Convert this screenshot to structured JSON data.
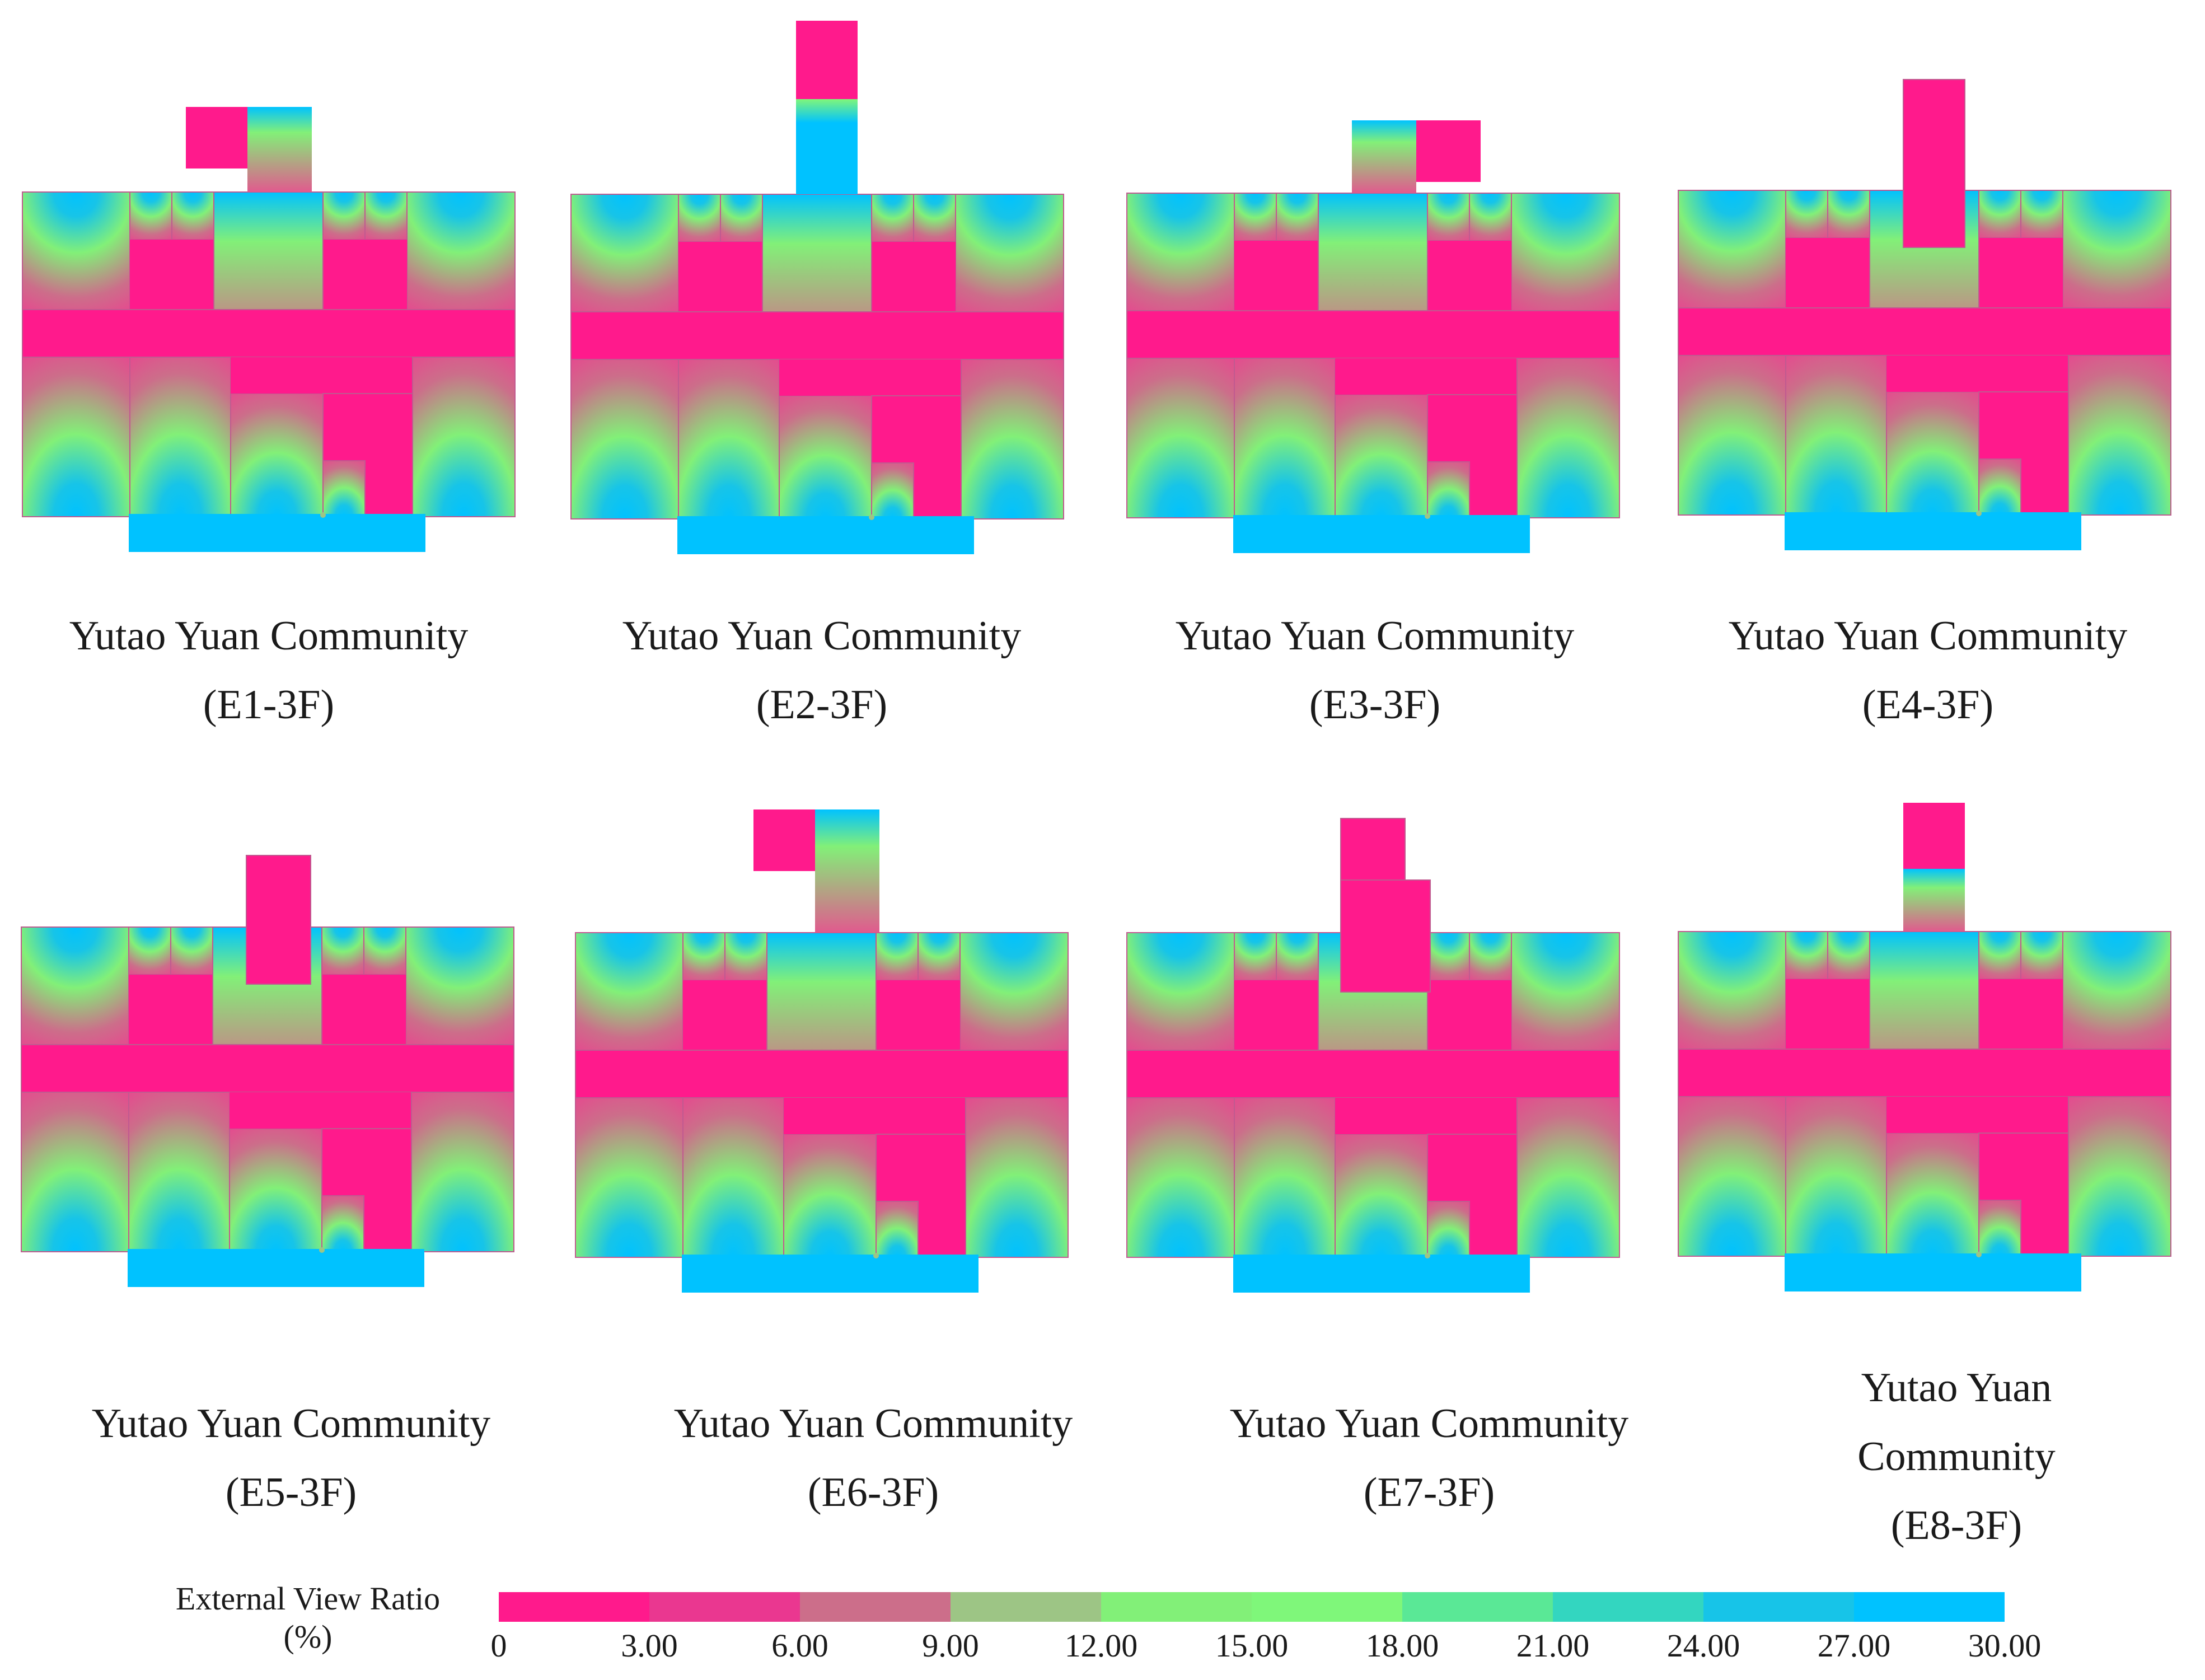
{
  "panels": [
    {
      "id": "E1",
      "title": "Yutao Yuan Community",
      "subtitle": "(E1-3F)",
      "caption_lines": [
        "Yutao Yuan Community",
        "(E1-3F)"
      ]
    },
    {
      "id": "E2",
      "title": "Yutao Yuan Community",
      "subtitle": "(E2-3F)",
      "caption_lines": [
        "Yutao Yuan Community",
        "(E2-3F)"
      ]
    },
    {
      "id": "E3",
      "title": "Yutao Yuan Community",
      "subtitle": "(E3-3F)",
      "caption_lines": [
        "Yutao Yuan Community",
        "(E3-3F)"
      ]
    },
    {
      "id": "E4",
      "title": "Yutao Yuan Community",
      "subtitle": "(E4-3F)",
      "caption_lines": [
        "Yutao Yuan Community",
        "(E4-3F)"
      ]
    },
    {
      "id": "E5",
      "title": "Yutao Yuan Community",
      "subtitle": "(E5-3F)",
      "caption_lines": [
        "Yutao Yuan Community",
        "(E5-3F)"
      ]
    },
    {
      "id": "E6",
      "title": "Yutao Yuan Community",
      "subtitle": "(E6-3F)",
      "caption_lines": [
        "Yutao Yuan Community",
        "(E6-3F)"
      ]
    },
    {
      "id": "E7",
      "title": "Yutao Yuan Community",
      "subtitle": "(E7-3F)",
      "caption_lines": [
        "Yutao Yuan Community",
        "(E7-3F)"
      ]
    },
    {
      "id": "E8",
      "title": "Yutao Yuan Community",
      "subtitle": "(E8-3F)",
      "caption_lines": [
        "Yutao Yuan",
        "Community",
        "(E8-3F)"
      ]
    }
  ],
  "legend": {
    "title_line1": "External View Ratio",
    "title_line2": "(%)",
    "ticks": [
      "0",
      "3.00",
      "6.00",
      "9.00",
      "12.00",
      "15.00",
      "18.00",
      "21.00",
      "24.00",
      "27.00",
      "30.00"
    ],
    "colors": [
      "#ff1a8c",
      "#ea3790",
      "#cc6e8a",
      "#9dc585",
      "#82f078",
      "#7ff77a",
      "#5ae896",
      "#33d6c0",
      "#17c4e8",
      "#00c2ff"
    ]
  },
  "palette": {
    "low": "#ff1a8c",
    "mid": "#82f078",
    "high": "#00c2ff",
    "room_edge": "#b04a8a"
  }
}
